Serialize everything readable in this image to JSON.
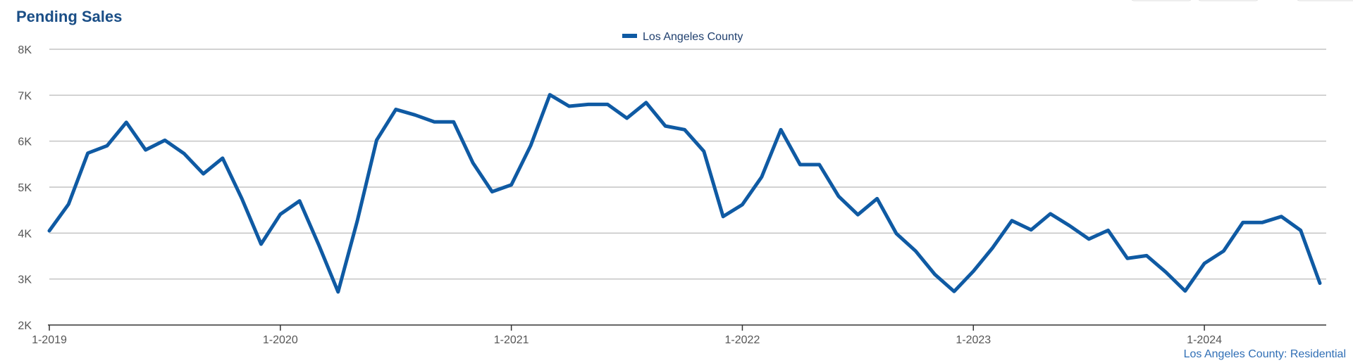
{
  "chart_data": {
    "type": "line",
    "title": "Pending Sales",
    "caption": "Los Angeles County: Residential",
    "xlabel": "",
    "ylabel": "",
    "ylim": [
      2000,
      8000
    ],
    "y_ticks": [
      2000,
      3000,
      4000,
      5000,
      6000,
      7000,
      8000
    ],
    "y_tick_labels": [
      "2K",
      "3K",
      "4K",
      "5K",
      "6K",
      "7K",
      "8K"
    ],
    "x_tick_labels": [
      "1-2019",
      "1-2020",
      "1-2021",
      "1-2022",
      "1-2023",
      "1-2024"
    ],
    "x_tick_indices": [
      0,
      12,
      24,
      36,
      48,
      60
    ],
    "legend_position": "top-center",
    "grid": true,
    "colors": {
      "series": "#0f5aa3",
      "title": "#1a4e86",
      "caption": "#2f6eb5"
    },
    "series": [
      {
        "name": "Los Angeles County",
        "values": [
          4050,
          4630,
          5740,
          5900,
          6410,
          5810,
          6020,
          5730,
          5290,
          5630,
          4750,
          3760,
          4410,
          4700,
          3740,
          2720,
          4270,
          6020,
          6690,
          6570,
          6420,
          6420,
          5530,
          4900,
          5050,
          5900,
          7010,
          6760,
          6800,
          6800,
          6500,
          6840,
          6330,
          6250,
          5780,
          4360,
          4620,
          5220,
          6250,
          5490,
          5490,
          4800,
          4400,
          4750,
          3990,
          3610,
          3100,
          2730,
          3170,
          3680,
          4270,
          4070,
          4420,
          4160,
          3870,
          4060,
          3450,
          3510,
          3150,
          2740,
          3340,
          3610,
          4230,
          4230,
          4360,
          4060,
          2910
        ]
      }
    ]
  }
}
